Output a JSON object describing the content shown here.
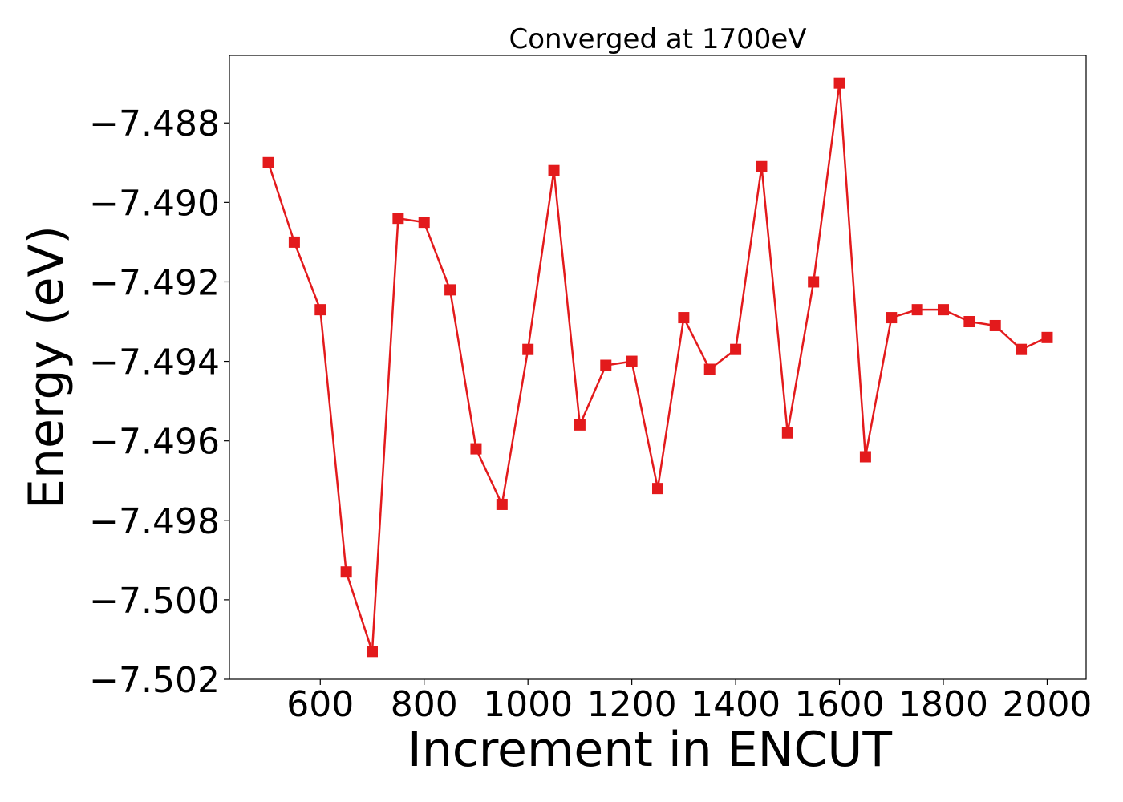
{
  "chart_data": {
    "type": "line",
    "title": "Converged at 1700eV",
    "xlabel": "Increment in ENCUT",
    "ylabel": "Energy (eV)",
    "xlim": [
      425,
      2075
    ],
    "ylim": [
      -7.502,
      -7.4863
    ],
    "xticks": [
      600,
      800,
      1000,
      1200,
      1400,
      1600,
      1800,
      2000
    ],
    "xtick_labels": [
      "600",
      "800",
      "1000",
      "1200",
      "1400",
      "1600",
      "1800",
      "2000"
    ],
    "yticks": [
      -7.488,
      -7.49,
      -7.492,
      -7.494,
      -7.496,
      -7.498,
      -7.5,
      -7.502
    ],
    "ytick_labels": [
      "−7.488",
      "−7.490",
      "−7.492",
      "−7.494",
      "−7.496",
      "−7.498",
      "−7.500",
      "−7.502"
    ],
    "grid": false,
    "series": [
      {
        "color": "#e31a1c",
        "marker": "square",
        "x": [
          500,
          550,
          600,
          650,
          700,
          750,
          800,
          850,
          900,
          950,
          1000,
          1050,
          1100,
          1150,
          1200,
          1250,
          1300,
          1350,
          1400,
          1450,
          1500,
          1550,
          1600,
          1650,
          1700,
          1750,
          1800,
          1850,
          1900,
          1950,
          2000
        ],
        "y": [
          -7.489,
          -7.491,
          -7.4927,
          -7.4993,
          -7.5013,
          -7.4904,
          -7.4905,
          -7.4922,
          -7.4962,
          -7.4976,
          -7.4937,
          -7.4892,
          -7.4956,
          -7.4941,
          -7.494,
          -7.4972,
          -7.4929,
          -7.4942,
          -7.4937,
          -7.4891,
          -7.4958,
          -7.492,
          -7.487,
          -7.4964,
          -7.4929,
          -7.4927,
          -7.4927,
          -7.493,
          -7.4931,
          -7.4937,
          -7.4934
        ]
      }
    ]
  }
}
